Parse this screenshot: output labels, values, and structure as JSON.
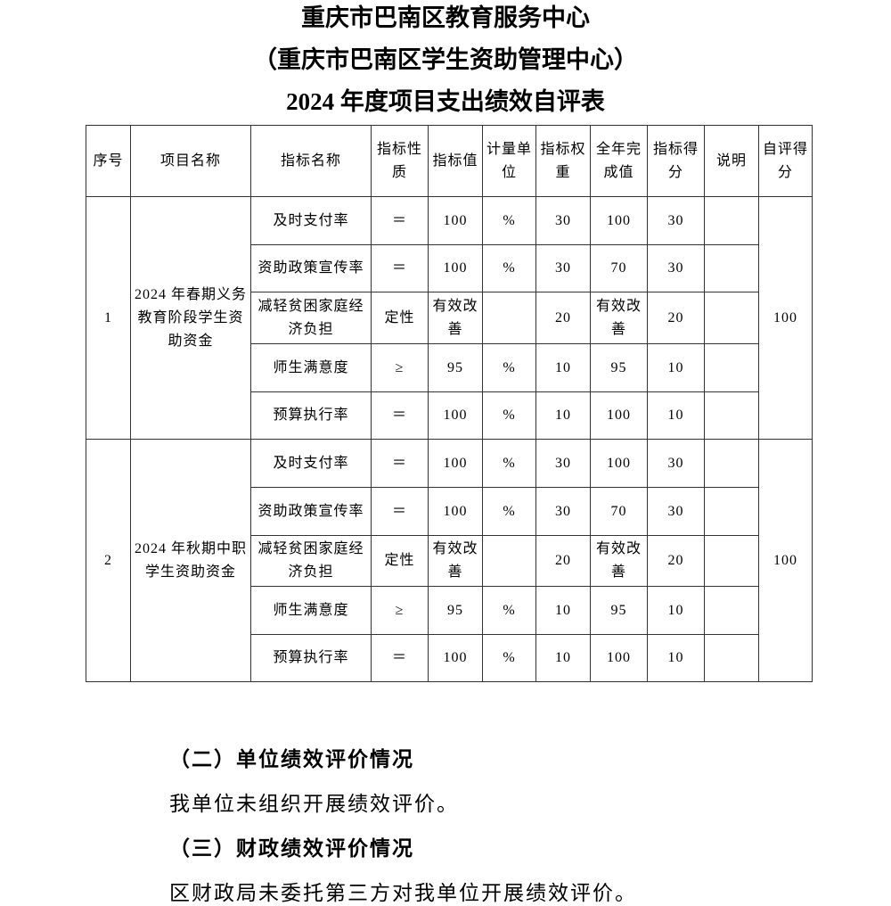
{
  "title": {
    "line1": "重庆市巴南区教育服务中心",
    "line2": "（重庆市巴南区学生资助管理中心）",
    "line3": "2024 年度项目支出绩效自评表"
  },
  "table": {
    "headers": [
      "序号",
      "项目名称",
      "指标名称",
      "指标性质",
      "指标值",
      "计量单位",
      "指标权重",
      "全年完成值",
      "指标得分",
      "说明",
      "自评得分"
    ],
    "projects": [
      {
        "no": "1",
        "name": "2024 年春期义务教育阶段学生资助资金",
        "score": "100",
        "indicators": [
          {
            "name": "及时支付率",
            "nature": "＝",
            "value": "100",
            "unit": "%",
            "weight": "30",
            "actual": "100",
            "score": "30",
            "note": ""
          },
          {
            "name": "资助政策宣传率",
            "nature": "＝",
            "value": "100",
            "unit": "%",
            "weight": "30",
            "actual": "70",
            "score": "30",
            "note": ""
          },
          {
            "name": "减轻贫困家庭经济负担",
            "nature": "定性",
            "value": "有效改善",
            "unit": "",
            "weight": "20",
            "actual": "有效改善",
            "score": "20",
            "note": ""
          },
          {
            "name": "师生满意度",
            "nature": "≥",
            "value": "95",
            "unit": "%",
            "weight": "10",
            "actual": "95",
            "score": "10",
            "note": ""
          },
          {
            "name": "预算执行率",
            "nature": "＝",
            "value": "100",
            "unit": "%",
            "weight": "10",
            "actual": "100",
            "score": "10",
            "note": ""
          }
        ]
      },
      {
        "no": "2",
        "name": "2024 年秋期中职学生资助资金",
        "score": "100",
        "indicators": [
          {
            "name": "及时支付率",
            "nature": "＝",
            "value": "100",
            "unit": "%",
            "weight": "30",
            "actual": "100",
            "score": "30",
            "note": ""
          },
          {
            "name": "资助政策宣传率",
            "nature": "＝",
            "value": "100",
            "unit": "%",
            "weight": "30",
            "actual": "70",
            "score": "30",
            "note": ""
          },
          {
            "name": "减轻贫困家庭经济负担",
            "nature": "定性",
            "value": "有效改善",
            "unit": "",
            "weight": "20",
            "actual": "有效改善",
            "score": "20",
            "note": ""
          },
          {
            "name": "师生满意度",
            "nature": "≥",
            "value": "95",
            "unit": "%",
            "weight": "10",
            "actual": "95",
            "score": "10",
            "note": ""
          },
          {
            "name": "预算执行率",
            "nature": "＝",
            "value": "100",
            "unit": "%",
            "weight": "10",
            "actual": "100",
            "score": "10",
            "note": ""
          }
        ]
      }
    ]
  },
  "sections": {
    "unit_heading": "（二）单位绩效评价情况",
    "unit_text": "我单位未组织开展绩效评价。",
    "finance_heading": "（三）财政绩效评价情况",
    "finance_text": "区财政局未委托第三方对我单位开展绩效评价。"
  }
}
